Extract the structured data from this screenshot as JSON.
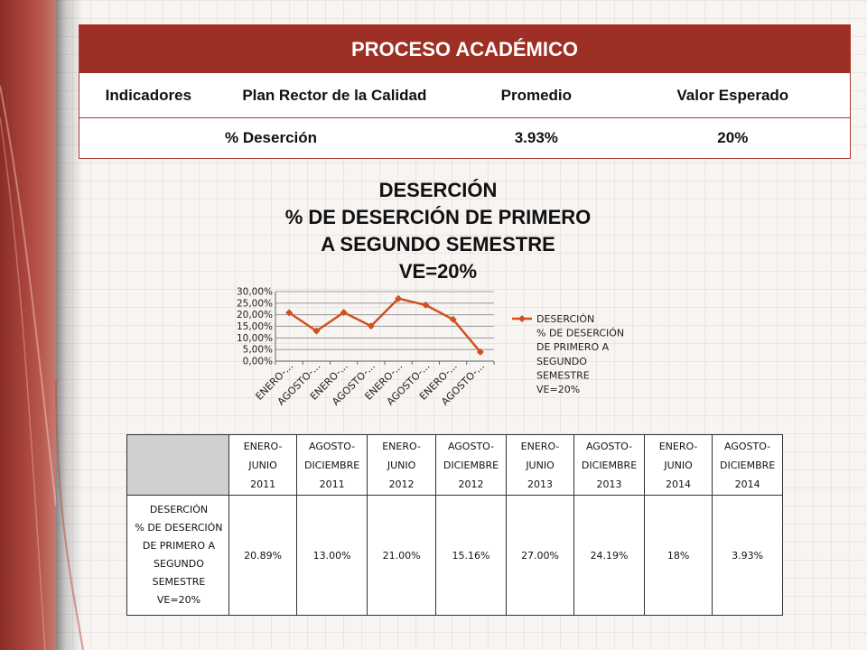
{
  "header": {
    "title": "PROCESO ACADÉMICO",
    "columns": [
      "Indicadores",
      "Plan Rector de la Calidad",
      "Promedio",
      "Valor Esperado"
    ],
    "row": {
      "indicator": "% Deserción",
      "promedio": "3.93%",
      "valor_esperado": "20%"
    }
  },
  "chart_title_lines": [
    "DESERCIÓN",
    "% DE DESERCIÓN DE PRIMERO",
    "A SEGUNDO SEMESTRE",
    "VE=20%"
  ],
  "legend_lines": [
    "DESERCIÓN",
    "% DE DESERCIÓN",
    "DE PRIMERO A",
    "SEGUNDO",
    "SEMESTRE",
    "VE=20%"
  ],
  "colors": {
    "brand_red": "#9d2f24",
    "series": "#d0501e"
  },
  "chart_data": {
    "type": "line",
    "title": "DESERCIÓN % DE DESERCIÓN DE PRIMERO A SEGUNDO SEMESTRE VE=20%",
    "categories": [
      "ENERO-...",
      "AGOSTO-...",
      "ENERO-...",
      "AGOSTO-...",
      "ENERO-...",
      "AGOSTO-...",
      "ENERO-...",
      "AGOSTO-..."
    ],
    "series": [
      {
        "name": "DESERCIÓN % DE DESERCIÓN DE PRIMERO A SEGUNDO SEMESTRE VE=20%",
        "values": [
          20.89,
          13.0,
          21.0,
          15.16,
          27.0,
          24.19,
          18.0,
          3.93
        ]
      }
    ],
    "ylim": [
      0,
      30
    ],
    "yticks": [
      "0,00%",
      "5,00%",
      "10,00%",
      "15,00%",
      "20,00%",
      "25,00%",
      "30,00%"
    ],
    "xlabel": "",
    "ylabel": "",
    "grid": "horizontal",
    "legend": "right"
  },
  "table": {
    "periods": [
      [
        "ENERO-",
        "JUNIO",
        "2011"
      ],
      [
        "AGOSTO-",
        "DICIEMBRE",
        "2011"
      ],
      [
        "ENERO-",
        "JUNIO",
        "2012"
      ],
      [
        "AGOSTO-",
        "DICIEMBRE",
        "2012"
      ],
      [
        "ENERO-",
        "JUNIO",
        "2013"
      ],
      [
        "AGOSTO-",
        "DICIEMBRE",
        "2013"
      ],
      [
        "ENERO-",
        "JUNIO",
        "2014"
      ],
      [
        "AGOSTO-",
        "DICIEMBRE",
        "2014"
      ]
    ],
    "series_label_lines": [
      "DESERCIÓN",
      "% DE DESERCIÓN",
      "DE PRIMERO A",
      "SEGUNDO",
      "SEMESTRE",
      "VE=20%"
    ],
    "values": [
      "20.89%",
      "13.00%",
      "21.00%",
      "15.16%",
      "27.00%",
      "24.19%",
      "18%",
      "3.93%"
    ]
  }
}
